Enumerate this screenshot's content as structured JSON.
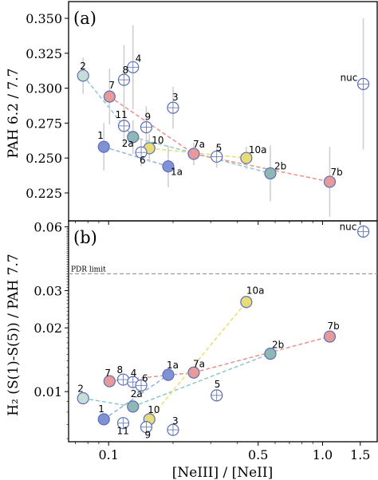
{
  "chart_data": [
    {
      "type": "scatter",
      "panel_label": "(a)",
      "ylabel": "PAH 6.2 / 7.7",
      "xscale": "log",
      "xlim": [
        0.065,
        1.8
      ],
      "ylim": [
        0.205,
        0.362
      ],
      "yticks": [
        0.225,
        0.25,
        0.275,
        0.3,
        0.325,
        0.35
      ],
      "ytick_labels": [
        "0.225",
        "0.250",
        "0.275",
        "0.300",
        "0.325",
        "0.350"
      ],
      "points": [
        {
          "label": "nuc",
          "x": 1.55,
          "y": 0.303,
          "err": 0.047,
          "fill": "#ffffff",
          "edge": "#5b6fb5",
          "cross": true
        },
        {
          "label": "2",
          "x": 0.076,
          "y": 0.309,
          "err": 0.013,
          "fill": "#c9ddd7",
          "edge": "#5b6fb5",
          "cross": false
        },
        {
          "label": "4",
          "x": 0.13,
          "y": 0.315,
          "err": 0.03,
          "fill": "#ffffff",
          "edge": "#5b6fb5",
          "cross": true
        },
        {
          "label": "8",
          "x": 0.118,
          "y": 0.306,
          "err": 0.025,
          "fill": "#ffffff",
          "edge": "#5b6fb5",
          "cross": true
        },
        {
          "label": "7",
          "x": 0.101,
          "y": 0.294,
          "err": 0.02,
          "fill": "#e79a9a",
          "edge": "#5b6fb5",
          "cross": false
        },
        {
          "label": "3",
          "x": 0.2,
          "y": 0.286,
          "err": 0.015,
          "fill": "#ffffff",
          "edge": "#5b6fb5",
          "cross": true
        },
        {
          "label": "11",
          "x": 0.118,
          "y": 0.273,
          "err": 0.015,
          "fill": "#ffffff",
          "edge": "#5b6fb5",
          "cross": true
        },
        {
          "label": "9",
          "x": 0.15,
          "y": 0.272,
          "err": 0.015,
          "fill": "#ffffff",
          "edge": "#5b6fb5",
          "cross": true
        },
        {
          "label": "2a",
          "x": 0.13,
          "y": 0.265,
          "err": 0.012,
          "fill": "#8fb8b4",
          "edge": "#5b6fb5",
          "cross": false
        },
        {
          "label": "1",
          "x": 0.095,
          "y": 0.258,
          "err": 0.017,
          "fill": "#8091d6",
          "edge": "#5b6fb5",
          "cross": false
        },
        {
          "label": "10",
          "x": 0.155,
          "y": 0.257,
          "err": 0.01,
          "fill": "#e8dc78",
          "edge": "#5b6fb5",
          "cross": false
        },
        {
          "label": "6",
          "x": 0.142,
          "y": 0.254,
          "err": 0.01,
          "fill": "#ffffff",
          "edge": "#5b6fb5",
          "cross": true
        },
        {
          "label": "7a",
          "x": 0.25,
          "y": 0.253,
          "err": 0.008,
          "fill": "#e79a9a",
          "edge": "#5b6fb5",
          "cross": false
        },
        {
          "label": "5",
          "x": 0.32,
          "y": 0.251,
          "err": 0.008,
          "fill": "#ffffff",
          "edge": "#5b6fb5",
          "cross": true
        },
        {
          "label": "10a",
          "x": 0.44,
          "y": 0.25,
          "err": 0.008,
          "fill": "#e8dc78",
          "edge": "#5b6fb5",
          "cross": false
        },
        {
          "label": "1a",
          "x": 0.19,
          "y": 0.244,
          "err": 0.015,
          "fill": "#8091d6",
          "edge": "#5b6fb5",
          "cross": false
        },
        {
          "label": "2b",
          "x": 0.57,
          "y": 0.239,
          "err": 0.02,
          "fill": "#8fb8b4",
          "edge": "#5b6fb5",
          "cross": false
        },
        {
          "label": "7b",
          "x": 1.08,
          "y": 0.233,
          "err": 0.025,
          "fill": "#e79a9a",
          "edge": "#5b6fb5",
          "cross": false
        }
      ],
      "lines": [
        {
          "from": "2",
          "to": "2a",
          "color": "#8fc8cc"
        },
        {
          "from": "2a",
          "to": "2b",
          "color": "#8fc8cc"
        },
        {
          "from": "7",
          "to": "7a",
          "color": "#e8928c"
        },
        {
          "from": "7a",
          "to": "7b",
          "color": "#e8928c"
        },
        {
          "from": "1",
          "to": "1a",
          "color": "#8fb3e0"
        },
        {
          "from": "10",
          "to": "10a",
          "color": "#e8de70"
        }
      ]
    },
    {
      "type": "scatter",
      "panel_label": "(b)",
      "ylabel": "H₂ (S(1)-S(5)) / PAH 7.7",
      "xscale": "log",
      "yscale": "log",
      "xlim": [
        0.065,
        1.8
      ],
      "ylim": [
        0.0058,
        0.064
      ],
      "yticks": [
        0.01,
        0.02,
        0.03,
        0.06
      ],
      "ytick_labels": [
        "0.01",
        "0.02",
        "0.03",
        "0.06"
      ],
      "xticks": [
        0.1,
        0.5,
        1.0,
        1.5
      ],
      "xtick_labels": [
        "0.1",
        "0.5",
        "1.0",
        "1.5"
      ],
      "xlabel": "[NeIII] / [NeII]",
      "hline": {
        "y": 0.036,
        "label": "PDR limit",
        "color": "#999999"
      },
      "points": [
        {
          "label": "nuc",
          "x": 1.55,
          "y": 0.057,
          "fill": "#ffffff",
          "edge": "#5b6fb5",
          "cross": true
        },
        {
          "label": "10a",
          "x": 0.44,
          "y": 0.0265,
          "fill": "#e8dc78",
          "edge": "#5b6fb5",
          "cross": false
        },
        {
          "label": "7b",
          "x": 1.08,
          "y": 0.0182,
          "fill": "#e79a9a",
          "edge": "#5b6fb5",
          "cross": false
        },
        {
          "label": "2b",
          "x": 0.57,
          "y": 0.0151,
          "fill": "#8fb8b4",
          "edge": "#5b6fb5",
          "cross": false
        },
        {
          "label": "7a",
          "x": 0.25,
          "y": 0.0123,
          "fill": "#e79a9a",
          "edge": "#5b6fb5",
          "cross": false
        },
        {
          "label": "1a",
          "x": 0.19,
          "y": 0.012,
          "fill": "#8091d6",
          "edge": "#5b6fb5",
          "cross": false
        },
        {
          "label": "7",
          "x": 0.101,
          "y": 0.0112,
          "fill": "#e79a9a",
          "edge": "#5b6fb5",
          "cross": false
        },
        {
          "label": "8",
          "x": 0.117,
          "y": 0.0114,
          "fill": "#ffffff",
          "edge": "#5b6fb5",
          "cross": true
        },
        {
          "label": "4",
          "x": 0.13,
          "y": 0.0111,
          "fill": "#ffffff",
          "edge": "#5b6fb5",
          "cross": true
        },
        {
          "label": "6",
          "x": 0.142,
          "y": 0.0107,
          "fill": "#ffffff",
          "edge": "#5b6fb5",
          "cross": true
        },
        {
          "label": "5",
          "x": 0.32,
          "y": 0.0096,
          "fill": "#ffffff",
          "edge": "#5b6fb5",
          "cross": true
        },
        {
          "label": "2",
          "x": 0.076,
          "y": 0.0093,
          "fill": "#c9ddd7",
          "edge": "#5b6fb5",
          "cross": false
        },
        {
          "label": "2a",
          "x": 0.13,
          "y": 0.0085,
          "fill": "#8fb8b4",
          "edge": "#5b6fb5",
          "cross": false
        },
        {
          "label": "1",
          "x": 0.095,
          "y": 0.0074,
          "fill": "#8091d6",
          "edge": "#5b6fb5",
          "cross": false
        },
        {
          "label": "11",
          "x": 0.117,
          "y": 0.0071,
          "fill": "#ffffff",
          "edge": "#5b6fb5",
          "cross": true
        },
        {
          "label": "10",
          "x": 0.155,
          "y": 0.0074,
          "fill": "#e8dc78",
          "edge": "#5b6fb5",
          "cross": false
        },
        {
          "label": "9",
          "x": 0.15,
          "y": 0.0068,
          "fill": "#ffffff",
          "edge": "#5b6fb5",
          "cross": true
        },
        {
          "label": "3",
          "x": 0.2,
          "y": 0.0066,
          "fill": "#ffffff",
          "edge": "#5b6fb5",
          "cross": true
        }
      ],
      "lines": [
        {
          "from": "2",
          "to": "2a",
          "color": "#8fc8cc"
        },
        {
          "from": "2a",
          "to": "2b",
          "color": "#8fc8cc"
        },
        {
          "from": "7",
          "to": "7a",
          "color": "#e8928c"
        },
        {
          "from": "7a",
          "to": "7b",
          "color": "#e8928c"
        },
        {
          "from": "1",
          "to": "1a",
          "color": "#8fb3e0"
        },
        {
          "from": "10",
          "to": "10a",
          "color": "#e8de70"
        }
      ]
    }
  ]
}
